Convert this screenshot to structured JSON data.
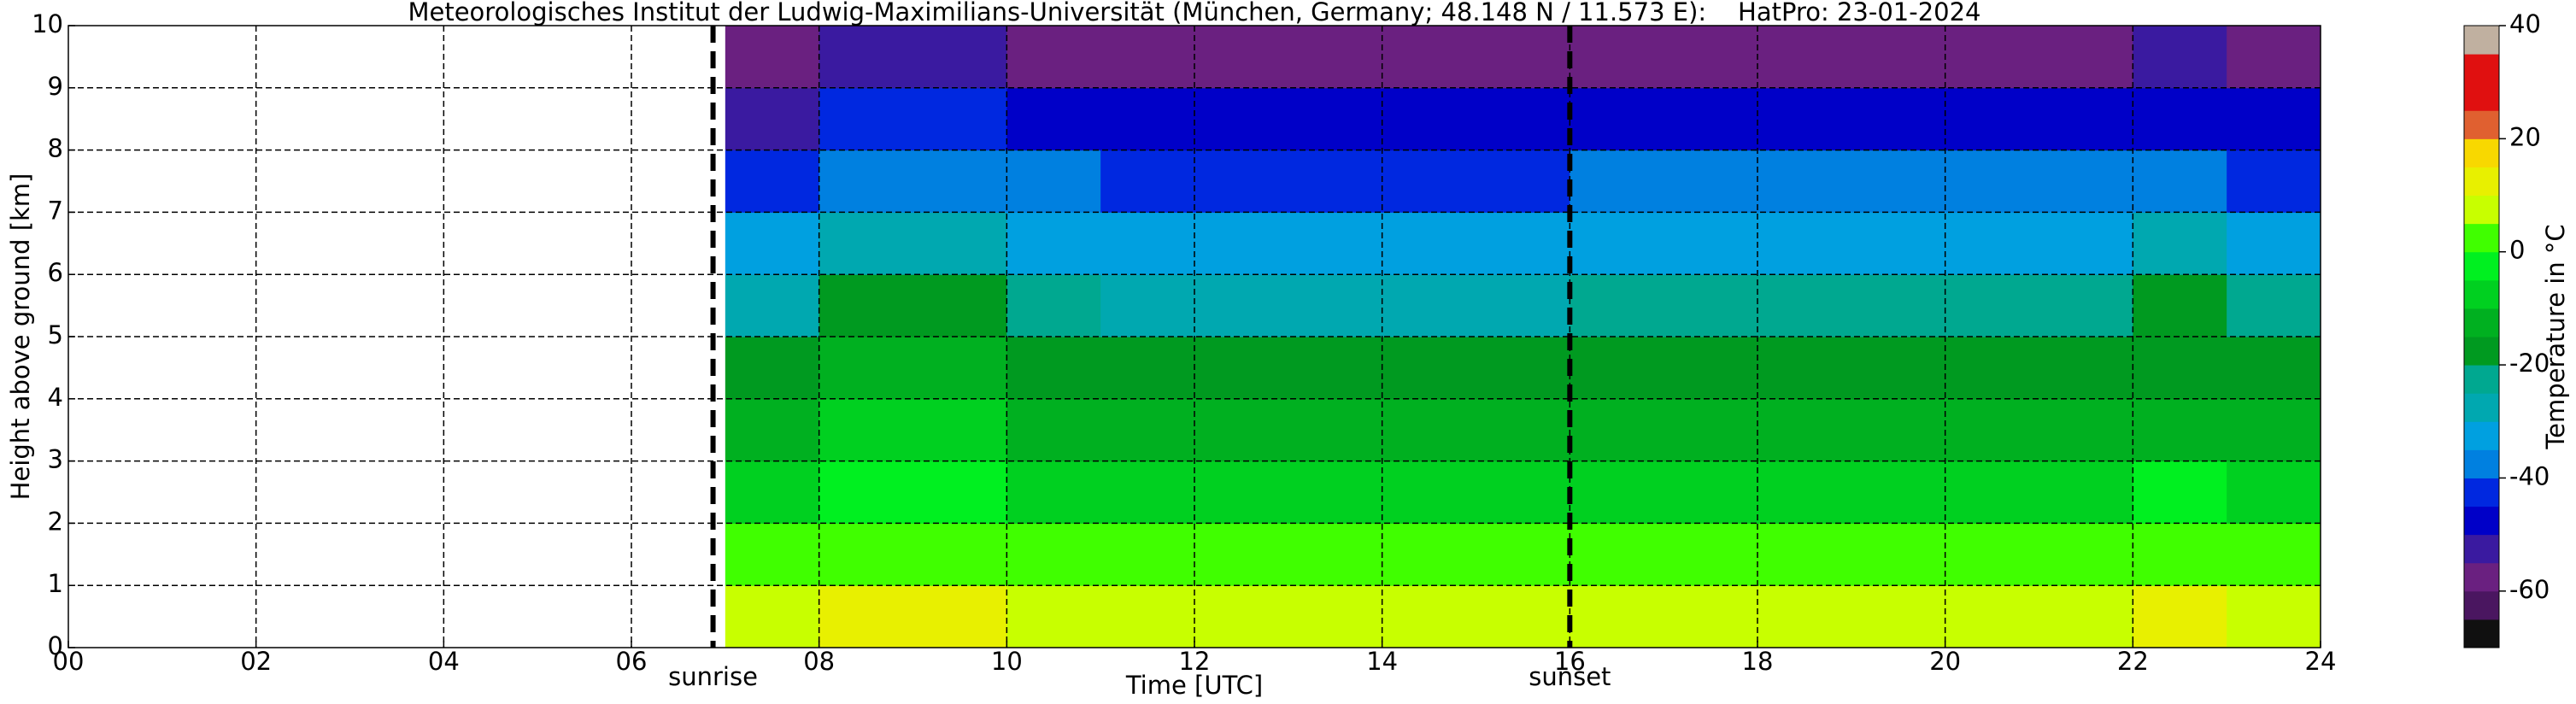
{
  "chart_data": {
    "type": "heatmap",
    "title": "Meteorologisches Institut der Ludwig-Maximilians-Universität (München, Germany; 48.148 N / 11.573 E):    HatPro: 23-01-2024",
    "xlabel": "Time [UTC]",
    "ylabel": "Height above ground [km]",
    "colorbar_label": "Temperature in °C",
    "xlim": [
      0,
      24
    ],
    "xticks": [
      {
        "value": 0,
        "label": "00"
      },
      {
        "value": 2,
        "label": "02"
      },
      {
        "value": 4,
        "label": "04"
      },
      {
        "value": 6,
        "label": "06"
      },
      {
        "value": 8,
        "label": "08"
      },
      10,
      12,
      14,
      16,
      18,
      20,
      22,
      24
    ],
    "ylim": [
      0,
      10
    ],
    "yticks": [
      0,
      1,
      2,
      3,
      4,
      5,
      6,
      7,
      8,
      9,
      10
    ],
    "grid": true,
    "clim": [
      -70,
      40
    ],
    "cticks": [
      -60,
      -40,
      -20,
      0,
      20,
      40
    ],
    "colormap": [
      "#101010",
      "#4a1660",
      "#6a2080",
      "#3a1aa0",
      "#0000c8",
      "#0028e0",
      "#0080e0",
      "#00a0e0",
      "#00a8b0",
      "#00a890",
      "#009a20",
      "#00b020",
      "#00d020",
      "#00f020",
      "#40ff00",
      "#c8ff00",
      "#e8f000",
      "#f8d800",
      "#e06030",
      "#e01010",
      "#e01010",
      "#c0b0a0"
    ],
    "annotations": [
      {
        "text": "sunrise",
        "x": 6.87
      },
      {
        "text": "sunset",
        "x": 16.0
      }
    ],
    "x": [
      7.5,
      8.5,
      9.5,
      10.5,
      11.5,
      12.5,
      13.5,
      14.5,
      15.5,
      16.5,
      17.5,
      18.5,
      19.5,
      20.5,
      21.5,
      22.5,
      23.5
    ],
    "y": [
      0.5,
      1.5,
      2.5,
      3.5,
      4.5,
      5.5,
      6.5,
      7.5,
      8.5,
      9.5
    ],
    "values": [
      [
        7,
        12,
        12,
        8,
        6,
        6,
        6,
        6,
        6,
        6,
        6,
        6,
        6,
        6,
        6,
        10,
        6
      ],
      [
        1,
        5,
        5,
        2,
        0,
        0,
        0,
        0,
        0,
        0,
        0,
        0,
        0,
        0,
        0,
        2,
        0
      ],
      [
        -7,
        -3,
        -3,
        -6,
        -8,
        -8,
        -8,
        -8,
        -8,
        -6,
        -6,
        -6,
        -6,
        -6,
        -6,
        -5,
        -6
      ],
      [
        -13,
        -10,
        -10,
        -13,
        -14,
        -14,
        -14,
        -14,
        -14,
        -13,
        -13,
        -13,
        -13,
        -13,
        -13,
        -12,
        -13
      ],
      [
        -18,
        -15,
        -15,
        -17,
        -18,
        -18,
        -18,
        -18,
        -18,
        -17,
        -17,
        -17,
        -17,
        -17,
        -17,
        -16,
        -17
      ],
      [
        -26,
        -18,
        -18,
        -24,
        -26,
        -26,
        -26,
        -26,
        -26,
        -22,
        -22,
        -22,
        -22,
        -22,
        -22,
        -20,
        -22
      ],
      [
        -34,
        -26,
        -26,
        -32,
        -34,
        -34,
        -34,
        -34,
        -34,
        -32,
        -32,
        -32,
        -32,
        -32,
        -32,
        -30,
        -32
      ],
      [
        -44,
        -36,
        -36,
        -40,
        -42,
        -42,
        -42,
        -42,
        -42,
        -40,
        -40,
        -40,
        -40,
        -40,
        -40,
        -40,
        -42
      ],
      [
        -52,
        -44,
        -44,
        -48,
        -50,
        -50,
        -50,
        -50,
        -50,
        -50,
        -50,
        -50,
        -50,
        -50,
        -50,
        -48,
        -50
      ],
      [
        -58,
        -55,
        -55,
        -56,
        -57,
        -57,
        -57,
        -57,
        -57,
        -56,
        -56,
        -56,
        -56,
        -56,
        -56,
        -55,
        -56
      ]
    ]
  }
}
